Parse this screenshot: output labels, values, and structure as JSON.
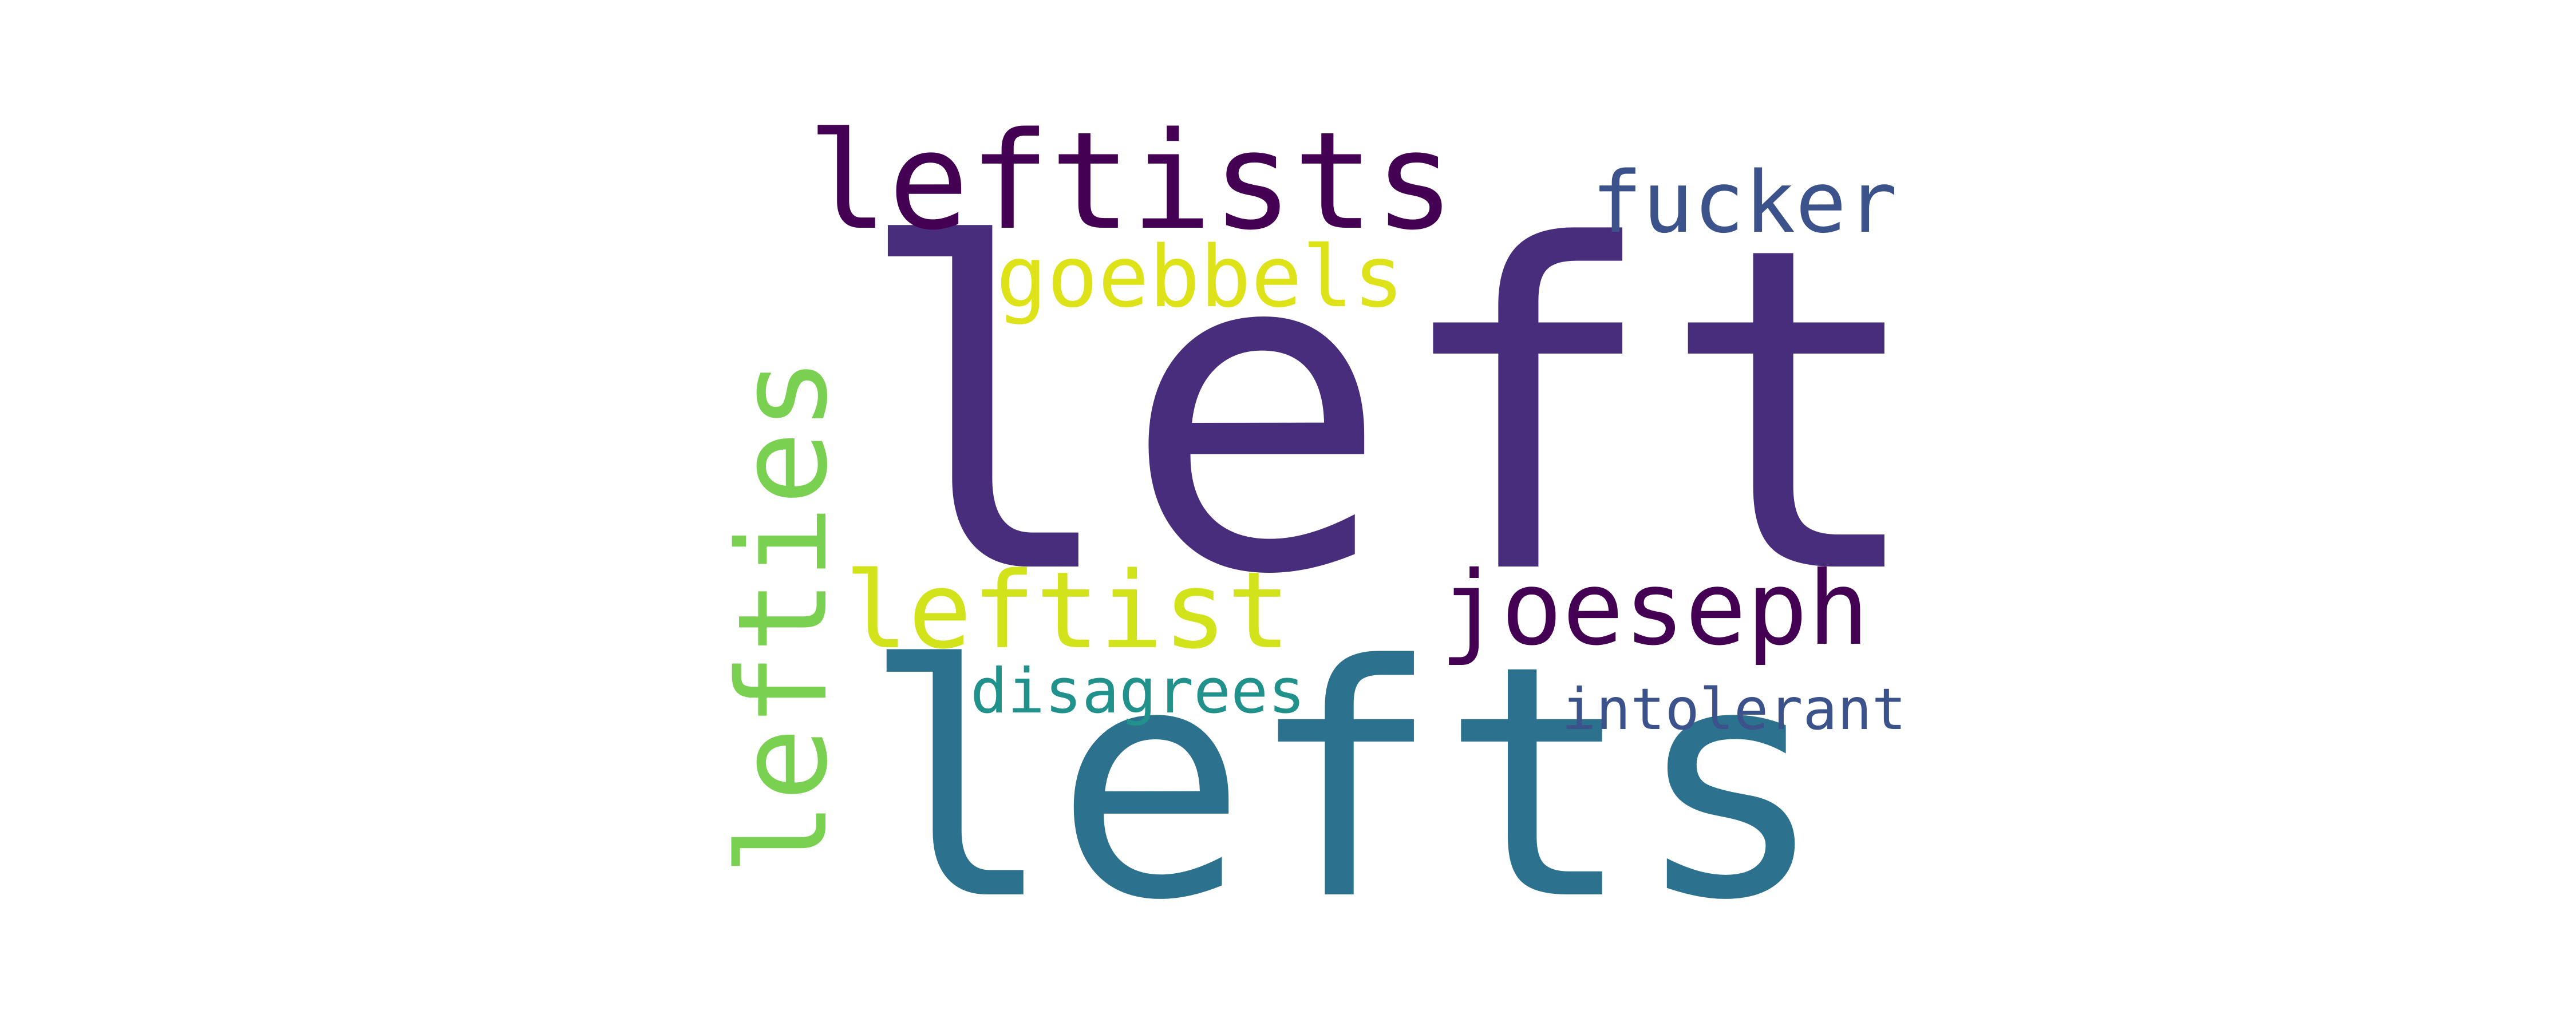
{
  "word_cloud": {
    "background": "#ffffff",
    "words": [
      {
        "id": "left",
        "text": "left",
        "color": "#472d7b",
        "orientation": "horizontal"
      },
      {
        "id": "lefts",
        "text": "lefts",
        "color": "#2c728e",
        "orientation": "horizontal"
      },
      {
        "id": "leftists",
        "text": "leftists",
        "color": "#440154",
        "orientation": "horizontal"
      },
      {
        "id": "lefties",
        "text": "lefties",
        "color": "#7ad151",
        "orientation": "vertical"
      },
      {
        "id": "leftist",
        "text": "leftist",
        "color": "#d2e21b",
        "orientation": "horizontal"
      },
      {
        "id": "joeseph",
        "text": "joeseph",
        "color": "#440154",
        "orientation": "horizontal"
      },
      {
        "id": "goebbels",
        "text": "goebbels",
        "color": "#dde318",
        "orientation": "horizontal"
      },
      {
        "id": "fucker",
        "text": "fucker",
        "color": "#3b528b",
        "orientation": "horizontal"
      },
      {
        "id": "disagrees",
        "text": "disagrees",
        "color": "#21918c",
        "orientation": "horizontal"
      },
      {
        "id": "intolerant",
        "text": "intolerant",
        "color": "#3b528b",
        "orientation": "horizontal"
      }
    ]
  }
}
